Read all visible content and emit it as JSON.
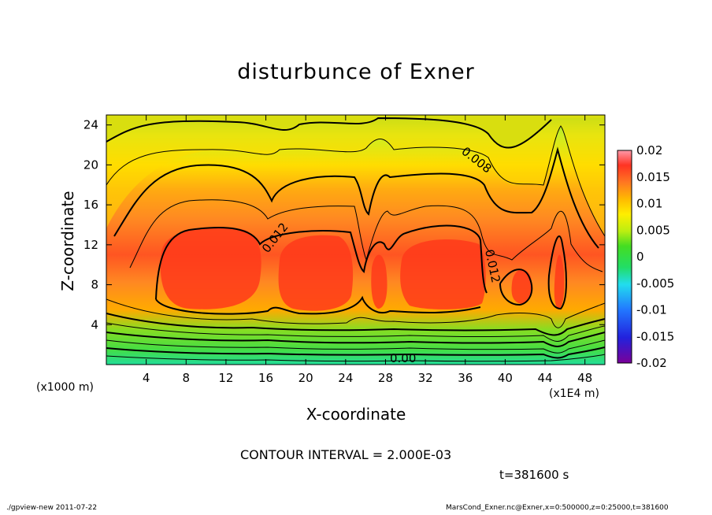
{
  "chart_data": {
    "type": "heatmap",
    "title": "disturbunce of Exner",
    "xlabel": "X-coordinate",
    "ylabel": "Z-coordinate",
    "x_unit": "(x1E4 m)",
    "y_unit": "(x1000 m)",
    "xlim": [
      0,
      50
    ],
    "ylim": [
      0,
      25
    ],
    "x_ticks": [
      "4",
      "8",
      "12",
      "16",
      "20",
      "24",
      "28",
      "32",
      "36",
      "40",
      "44",
      "48"
    ],
    "y_ticks": [
      "4",
      "8",
      "12",
      "16",
      "20",
      "24"
    ],
    "x_tick_values": [
      4,
      8,
      12,
      16,
      20,
      24,
      28,
      32,
      36,
      40,
      44,
      48
    ],
    "y_tick_values": [
      4,
      8,
      12,
      16,
      20,
      24
    ],
    "colorbar": {
      "labels": [
        "0.02",
        "0.015",
        "0.01",
        "0.005",
        "0",
        "-0.005",
        "-0.01",
        "-0.015",
        "-0.02"
      ],
      "min": -0.02,
      "max": 0.02
    },
    "contour_interval": "CONTOUR INTERVAL = 2.000E-03",
    "contour_labels": [
      "0.008",
      "0.012",
      "0.012",
      "0.00"
    ],
    "time": "t=381600 s",
    "notes": {
      "cells": [
        {
          "x": 8.5,
          "z": 8,
          "value": 0.014
        },
        {
          "x": 12.5,
          "z": 8,
          "value": 0.014
        },
        {
          "x": 18.5,
          "z": 8,
          "value": 0.015
        },
        {
          "x": 21.5,
          "z": 8,
          "value": 0.015
        },
        {
          "x": 27.5,
          "z": 8,
          "value": 0.014
        },
        {
          "x": 33,
          "z": 8,
          "value": 0.015
        },
        {
          "x": 41.5,
          "z": 7.5,
          "value": 0.013
        },
        {
          "x": 45.5,
          "z": 8,
          "value": 0.013
        }
      ]
    }
  },
  "footer": {
    "left": "./gpview-new  2011-07-22",
    "right": "MarsCond_Exner.nc@Exner,x=0:500000,z=0:25000,t=381600"
  }
}
